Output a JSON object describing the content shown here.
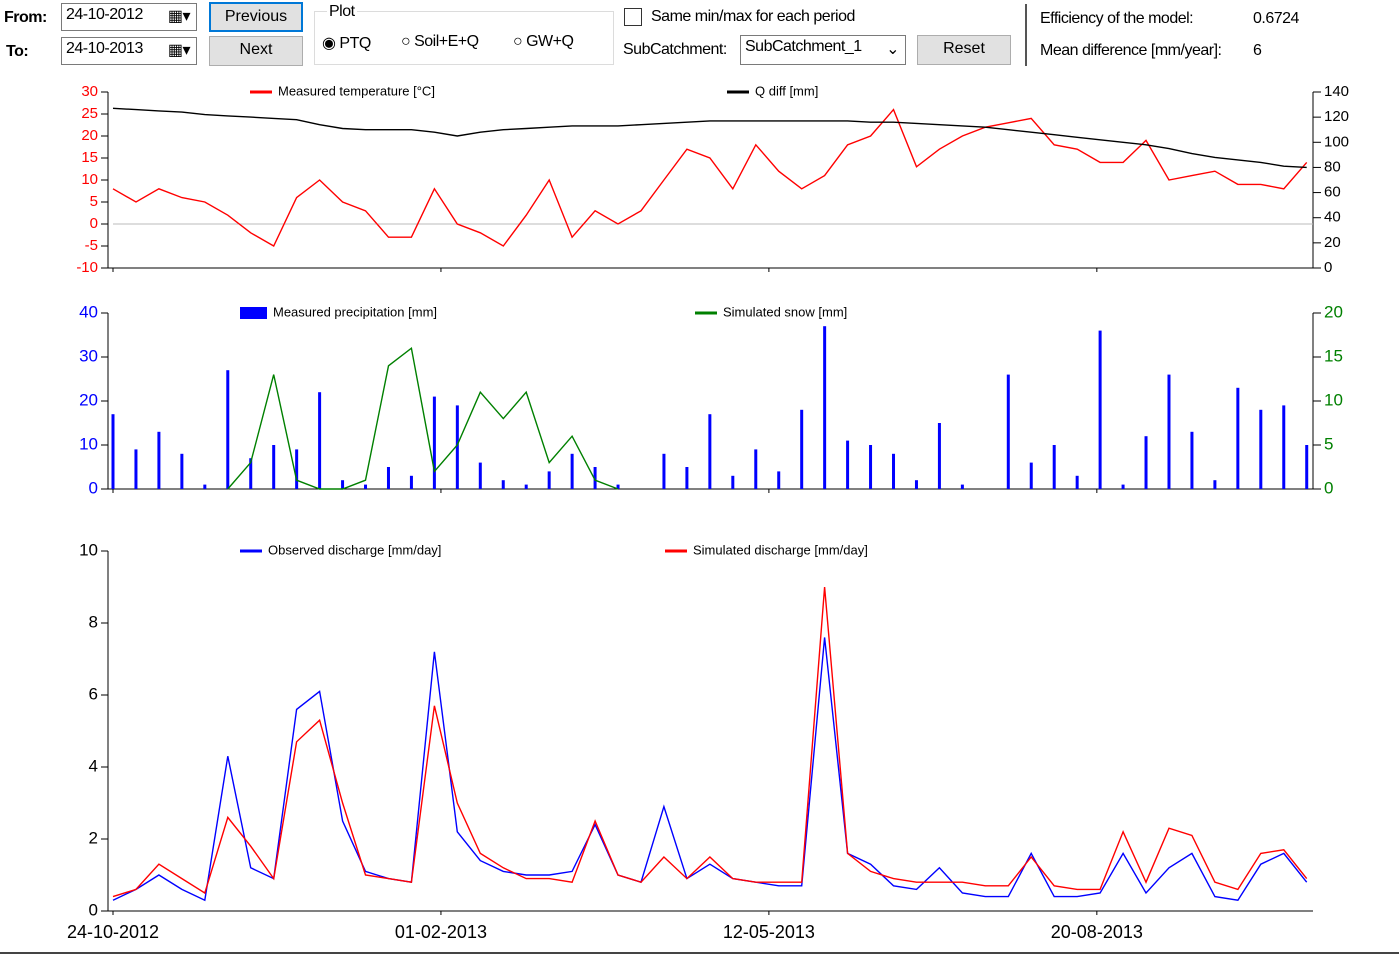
{
  "controls": {
    "from_label": "From:",
    "to_label": "To:",
    "from_date": "24-10-2012",
    "to_date": "24-10-2013",
    "previous": "Previous",
    "next": "Next",
    "plot_group": "Plot",
    "radios": [
      "PTQ",
      "Soil+E+Q",
      "GW+Q"
    ],
    "checkbox": "Same min/max for each period",
    "subcatchment_label": "SubCatchment:",
    "subcatchment_value": "SubCatchment_1",
    "reset": "Reset",
    "efficiency_label": "Efficiency of the model:",
    "efficiency_value": "0.6724",
    "mean_diff_label": "Mean difference [mm/year]:",
    "mean_diff_value": "6"
  },
  "chart_data": [
    {
      "type": "line",
      "x": [
        "24-10-2012",
        "31-10-2012",
        "07-11-2012",
        "14-11-2012",
        "21-11-2012",
        "28-11-2012",
        "05-12-2012",
        "12-12-2012",
        "19-12-2012",
        "26-12-2012",
        "02-01-2013",
        "09-01-2013",
        "16-01-2013",
        "23-01-2013",
        "30-01-2013",
        "06-02-2013",
        "13-02-2013",
        "20-02-2013",
        "27-02-2013",
        "06-03-2013",
        "13-03-2013",
        "20-03-2013",
        "27-03-2013",
        "03-04-2013",
        "10-04-2013",
        "17-04-2013",
        "24-04-2013",
        "01-05-2013",
        "08-05-2013",
        "15-05-2013",
        "22-05-2013",
        "29-05-2013",
        "05-06-2013",
        "12-06-2013",
        "19-06-2013",
        "26-06-2013",
        "03-07-2013",
        "10-07-2013",
        "17-07-2013",
        "24-07-2013",
        "31-07-2013",
        "07-08-2013",
        "14-08-2013",
        "21-08-2013",
        "28-08-2013",
        "04-09-2013",
        "11-09-2013",
        "18-09-2013",
        "25-09-2013",
        "02-10-2013",
        "09-10-2013",
        "16-10-2013",
        "23-10-2013"
      ],
      "xlim": [
        "24-10-2012",
        "24-10-2013"
      ],
      "xticks": [
        "24-10-2012",
        "01-02-2013",
        "12-05-2013",
        "20-08-2013"
      ],
      "ylim": [
        -10,
        30
      ],
      "yticks": [
        -10,
        -5,
        0,
        5,
        10,
        15,
        20,
        25,
        30
      ],
      "ytick_color": "#ff0000",
      "y2lim": [
        0,
        140
      ],
      "y2ticks": [
        0,
        20,
        40,
        60,
        80,
        100,
        120,
        140
      ],
      "y2tick_color": "#000000",
      "zero_line": true,
      "series": [
        {
          "name": "Measured temperature [°C]",
          "color": "#ff0000",
          "values": [
            8,
            5,
            8,
            6,
            5,
            2,
            -2,
            -5,
            6,
            10,
            5,
            3,
            -3,
            -3,
            8,
            0,
            -2,
            -5,
            2,
            10,
            -3,
            3,
            0,
            3,
            10,
            17,
            15,
            8,
            18,
            12,
            8,
            11,
            18,
            20,
            26,
            13,
            17,
            20,
            22,
            23,
            24,
            18,
            17,
            14,
            14,
            19,
            10,
            11,
            12,
            9,
            9,
            8,
            14
          ]
        },
        {
          "name": "Q diff [mm]",
          "color": "#000000",
          "axis": "y2",
          "values": [
            127,
            126,
            125,
            124,
            122,
            121,
            120,
            119,
            118,
            114,
            111,
            110,
            110,
            110,
            108,
            105,
            108,
            110,
            111,
            112,
            113,
            113,
            113,
            114,
            115,
            116,
            117,
            117,
            117,
            117,
            117,
            117,
            117,
            116,
            116,
            115,
            114,
            113,
            112,
            110,
            108,
            106,
            104,
            102,
            100,
            98,
            95,
            91,
            88,
            86,
            84,
            81,
            80
          ]
        }
      ]
    },
    {
      "type": "bar",
      "x": [
        "24-10-2012",
        "31-10-2012",
        "07-11-2012",
        "14-11-2012",
        "21-11-2012",
        "28-11-2012",
        "05-12-2012",
        "12-12-2012",
        "19-12-2012",
        "26-12-2012",
        "02-01-2013",
        "09-01-2013",
        "16-01-2013",
        "23-01-2013",
        "30-01-2013",
        "06-02-2013",
        "13-02-2013",
        "20-02-2013",
        "27-02-2013",
        "06-03-2013",
        "13-03-2013",
        "20-03-2013",
        "27-03-2013",
        "03-04-2013",
        "10-04-2013",
        "17-04-2013",
        "24-04-2013",
        "01-05-2013",
        "08-05-2013",
        "15-05-2013",
        "22-05-2013",
        "29-05-2013",
        "05-06-2013",
        "12-06-2013",
        "19-06-2013",
        "26-06-2013",
        "03-07-2013",
        "10-07-2013",
        "17-07-2013",
        "24-07-2013",
        "31-07-2013",
        "07-08-2013",
        "14-08-2013",
        "21-08-2013",
        "28-08-2013",
        "04-09-2013",
        "11-09-2013",
        "18-09-2013",
        "25-09-2013",
        "02-10-2013",
        "09-10-2013",
        "16-10-2013",
        "23-10-2013"
      ],
      "xlim": [
        "24-10-2012",
        "24-10-2013"
      ],
      "xticks": [
        "24-10-2012",
        "01-02-2013",
        "12-05-2013",
        "20-08-2013"
      ],
      "ylim": [
        0,
        40
      ],
      "yticks": [
        0,
        10,
        20,
        30,
        40
      ],
      "ytick_color": "#0000ff",
      "y2lim": [
        0,
        20
      ],
      "y2ticks": [
        0,
        5,
        10,
        15,
        20
      ],
      "y2tick_color": "#008000",
      "series": [
        {
          "name": "Measured precipitation [mm]",
          "color": "#0000ff",
          "values": [
            17,
            9,
            13,
            8,
            1,
            27,
            7,
            10,
            9,
            22,
            2,
            1,
            5,
            3,
            21,
            19,
            6,
            2,
            1,
            4,
            8,
            5,
            1,
            0,
            8,
            5,
            17,
            3,
            9,
            4,
            18,
            37,
            11,
            10,
            8,
            2,
            15,
            1,
            0,
            26,
            6,
            10,
            3,
            36,
            1,
            12,
            26,
            13,
            2,
            23,
            18,
            19,
            10
          ]
        },
        {
          "name": "Simulated snow [mm]",
          "color": "#008000",
          "type": "line",
          "axis": "y2",
          "values": [
            null,
            null,
            null,
            null,
            null,
            0,
            3,
            13,
            1,
            0,
            0,
            1,
            14,
            16,
            2,
            5,
            11,
            8,
            11,
            3,
            6,
            1,
            0,
            null,
            null,
            null,
            null,
            null,
            null,
            null,
            null,
            null,
            null,
            null,
            null,
            null,
            null,
            null,
            null,
            null,
            null,
            null,
            null,
            null,
            null,
            null,
            null,
            null,
            null,
            null,
            null,
            null,
            null
          ]
        }
      ]
    },
    {
      "type": "line",
      "x": [
        "24-10-2012",
        "31-10-2012",
        "07-11-2012",
        "14-11-2012",
        "21-11-2012",
        "28-11-2012",
        "05-12-2012",
        "12-12-2012",
        "19-12-2012",
        "26-12-2012",
        "02-01-2013",
        "09-01-2013",
        "16-01-2013",
        "23-01-2013",
        "30-01-2013",
        "06-02-2013",
        "13-02-2013",
        "20-02-2013",
        "27-02-2013",
        "06-03-2013",
        "13-03-2013",
        "20-03-2013",
        "27-03-2013",
        "03-04-2013",
        "10-04-2013",
        "17-04-2013",
        "24-04-2013",
        "01-05-2013",
        "08-05-2013",
        "15-05-2013",
        "22-05-2013",
        "29-05-2013",
        "05-06-2013",
        "12-06-2013",
        "19-06-2013",
        "26-06-2013",
        "03-07-2013",
        "10-07-2013",
        "17-07-2013",
        "24-07-2013",
        "31-07-2013",
        "07-08-2013",
        "14-08-2013",
        "21-08-2013",
        "28-08-2013",
        "04-09-2013",
        "11-09-2013",
        "18-09-2013",
        "25-09-2013",
        "02-10-2013",
        "09-10-2013",
        "16-10-2013",
        "23-10-2013"
      ],
      "xlim": [
        "24-10-2012",
        "24-10-2013"
      ],
      "xticks": [
        "24-10-2012",
        "01-02-2013",
        "12-05-2013",
        "20-08-2013"
      ],
      "xtick_labels": true,
      "ylim": [
        0,
        10
      ],
      "yticks": [
        0,
        2,
        4,
        6,
        8,
        10
      ],
      "ytick_color": "#000000",
      "series": [
        {
          "name": "Observed discharge [mm/day]",
          "color": "#0000ff",
          "values": [
            0.3,
            0.6,
            1.0,
            0.6,
            0.3,
            4.3,
            1.2,
            0.9,
            5.6,
            6.1,
            2.5,
            1.1,
            0.9,
            0.8,
            7.2,
            2.2,
            1.4,
            1.1,
            1.0,
            1.0,
            1.1,
            2.4,
            1.0,
            0.8,
            2.9,
            0.9,
            1.3,
            0.9,
            0.8,
            0.7,
            0.7,
            7.6,
            1.6,
            1.3,
            0.7,
            0.6,
            1.2,
            0.5,
            0.4,
            0.4,
            1.6,
            0.4,
            0.4,
            0.5,
            1.6,
            0.5,
            1.2,
            1.6,
            0.4,
            0.3,
            1.3,
            1.6,
            0.8
          ]
        },
        {
          "name": "Simulated discharge [mm/day]",
          "color": "#ff0000",
          "values": [
            0.4,
            0.6,
            1.3,
            0.9,
            0.5,
            2.6,
            1.8,
            0.9,
            4.7,
            5.3,
            3.0,
            1.0,
            0.9,
            0.8,
            5.7,
            3.0,
            1.6,
            1.2,
            0.9,
            0.9,
            0.8,
            2.5,
            1.0,
            0.8,
            1.5,
            0.9,
            1.5,
            0.9,
            0.8,
            0.8,
            0.8,
            9.0,
            1.6,
            1.1,
            0.9,
            0.8,
            0.8,
            0.8,
            0.7,
            0.7,
            1.5,
            0.7,
            0.6,
            0.6,
            2.2,
            0.8,
            2.3,
            2.1,
            0.8,
            0.6,
            1.6,
            1.7,
            0.9
          ]
        }
      ]
    }
  ]
}
